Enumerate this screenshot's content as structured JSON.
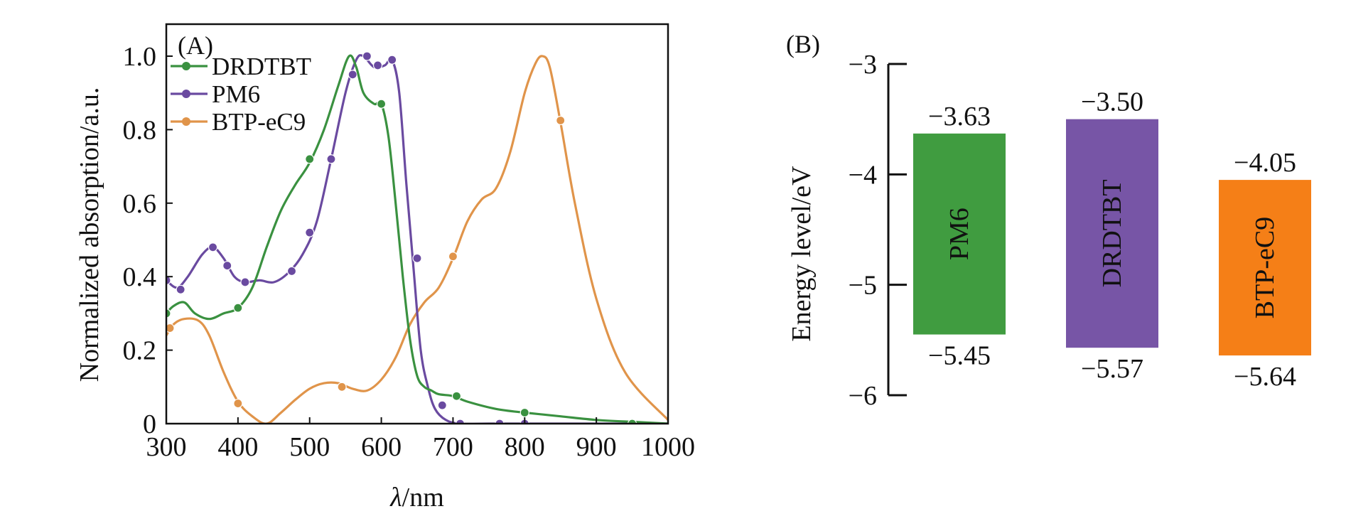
{
  "chart_data": [
    {
      "type": "line",
      "panel_label": "(A)",
      "xlabel_italic": "λ",
      "xlabel_rest": "/nm",
      "ylabel": "Normalized absorption/a.u.",
      "xlim": [
        300,
        1000
      ],
      "ylim": [
        0,
        1.1
      ],
      "xticks": [
        300,
        400,
        500,
        600,
        700,
        800,
        900,
        1000
      ],
      "yticks": [
        0,
        0.2,
        0.4,
        0.6,
        0.8,
        1.0
      ],
      "ytick_labels": [
        "0",
        "0.2",
        "0.4",
        "0.6",
        "0.8",
        "1.0"
      ],
      "legend_position": "top-left",
      "series": [
        {
          "name": "DRDTBT",
          "color": "#3a9140",
          "x": [
            300,
            310,
            325,
            340,
            360,
            380,
            400,
            420,
            440,
            460,
            480,
            500,
            520,
            540,
            555,
            565,
            575,
            590,
            600,
            610,
            620,
            630,
            640,
            650,
            660,
            670,
            680,
            700,
            720,
            760,
            800,
            850,
            900,
            950,
            1000
          ],
          "y": [
            0.3,
            0.32,
            0.33,
            0.3,
            0.285,
            0.3,
            0.315,
            0.37,
            0.48,
            0.58,
            0.65,
            0.71,
            0.8,
            0.92,
            1.0,
            0.97,
            0.9,
            0.87,
            0.87,
            0.78,
            0.6,
            0.4,
            0.23,
            0.13,
            0.1,
            0.09,
            0.08,
            0.075,
            0.06,
            0.04,
            0.03,
            0.02,
            0.01,
            0.005,
            0.0
          ],
          "markers": [
            [
              300,
              0.3
            ],
            [
              400,
              0.315
            ],
            [
              500,
              0.72
            ],
            [
              600,
              0.87
            ],
            [
              705,
              0.075
            ],
            [
              800,
              0.03
            ],
            [
              950,
              0.0
            ]
          ]
        },
        {
          "name": "PM6",
          "color": "#6a4aa0",
          "x": [
            300,
            315,
            330,
            350,
            365,
            380,
            395,
            410,
            430,
            450,
            470,
            490,
            510,
            530,
            550,
            565,
            575,
            590,
            605,
            615,
            625,
            635,
            645,
            655,
            665,
            675,
            690,
            710,
            750,
            800,
            1000
          ],
          "y": [
            0.39,
            0.37,
            0.4,
            0.46,
            0.48,
            0.45,
            0.4,
            0.385,
            0.39,
            0.385,
            0.41,
            0.46,
            0.55,
            0.72,
            0.9,
            0.99,
            1.0,
            0.97,
            0.975,
            0.99,
            0.9,
            0.65,
            0.42,
            0.2,
            0.1,
            0.04,
            0.01,
            0.0,
            0.0,
            0.0,
            0.0
          ],
          "markers": [
            [
              300,
              0.39
            ],
            [
              320,
              0.365
            ],
            [
              365,
              0.48
            ],
            [
              385,
              0.43
            ],
            [
              410,
              0.385
            ],
            [
              475,
              0.415
            ],
            [
              500,
              0.52
            ],
            [
              530,
              0.72
            ],
            [
              560,
              0.95
            ],
            [
              580,
              1.0
            ],
            [
              595,
              0.975
            ],
            [
              615,
              0.99
            ],
            [
              650,
              0.45
            ],
            [
              685,
              0.05
            ],
            [
              710,
              0.0
            ],
            [
              765,
              0.0
            ],
            [
              800,
              0.0
            ]
          ]
        },
        {
          "name": "BTP-eC9",
          "color": "#e0944a",
          "x": [
            300,
            310,
            325,
            345,
            360,
            380,
            400,
            420,
            440,
            460,
            480,
            500,
            520,
            540,
            560,
            580,
            600,
            620,
            640,
            660,
            680,
            700,
            720,
            740,
            760,
            780,
            800,
            815,
            825,
            835,
            850,
            870,
            900,
            940,
            1000
          ],
          "y": [
            0.24,
            0.27,
            0.285,
            0.28,
            0.24,
            0.14,
            0.06,
            0.02,
            0.0,
            0.03,
            0.065,
            0.095,
            0.11,
            0.11,
            0.095,
            0.09,
            0.12,
            0.18,
            0.27,
            0.33,
            0.37,
            0.45,
            0.55,
            0.61,
            0.64,
            0.74,
            0.9,
            0.98,
            1.0,
            0.97,
            0.82,
            0.6,
            0.34,
            0.14,
            0.01
          ],
          "markers": [
            [
              305,
              0.26
            ],
            [
              400,
              0.055
            ],
            [
              545,
              0.1
            ],
            [
              700,
              0.455
            ],
            [
              850,
              0.825
            ]
          ]
        }
      ]
    },
    {
      "type": "bar",
      "panel_label": "(B)",
      "ylabel": "Energy level/eV",
      "ylim": [
        -6,
        -3
      ],
      "yticks": [
        -3,
        -4,
        -5,
        -6
      ],
      "ytick_labels": [
        "−3",
        "−4",
        "−5",
        "−6"
      ],
      "bars": [
        {
          "name": "PM6",
          "lumo": -3.63,
          "homo": -5.45,
          "lumo_label": "−3.63",
          "homo_label": "−5.45",
          "color": "#409c40"
        },
        {
          "name": "DRDTBT",
          "lumo": -3.5,
          "homo": -5.57,
          "lumo_label": "−3.50",
          "homo_label": "−5.57",
          "color": "#7755a6"
        },
        {
          "name": "BTP-eC9",
          "lumo": -4.05,
          "homo": -5.64,
          "lumo_label": "−4.05",
          "homo_label": "−5.64",
          "color": "#f57f17"
        }
      ]
    }
  ]
}
